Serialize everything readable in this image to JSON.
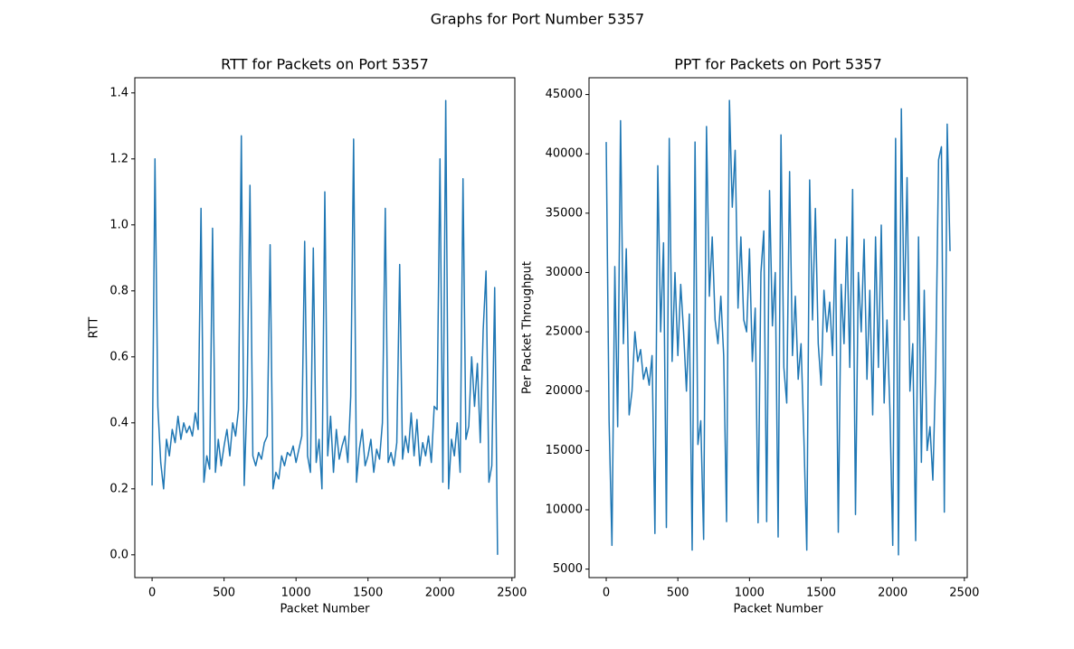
{
  "title": "Graphs for Port Number 5357",
  "chart_data": [
    {
      "type": "line",
      "title": "RTT for Packets on Port 5357",
      "xlabel": "Packet Number",
      "ylabel": "RTT",
      "color": "#1f77b4",
      "x": [
        0,
        20,
        40,
        60,
        80,
        100,
        120,
        140,
        160,
        180,
        200,
        220,
        240,
        260,
        280,
        300,
        320,
        340,
        360,
        380,
        400,
        420,
        440,
        460,
        480,
        500,
        520,
        540,
        560,
        580,
        600,
        620,
        640,
        660,
        680,
        700,
        720,
        740,
        760,
        780,
        800,
        820,
        840,
        860,
        880,
        900,
        920,
        940,
        960,
        980,
        1000,
        1020,
        1040,
        1060,
        1080,
        1100,
        1120,
        1140,
        1160,
        1180,
        1200,
        1220,
        1240,
        1260,
        1280,
        1300,
        1320,
        1340,
        1360,
        1380,
        1400,
        1420,
        1440,
        1460,
        1480,
        1500,
        1520,
        1540,
        1560,
        1580,
        1600,
        1620,
        1640,
        1660,
        1680,
        1700,
        1720,
        1740,
        1760,
        1780,
        1800,
        1820,
        1840,
        1860,
        1880,
        1900,
        1920,
        1940,
        1960,
        1980,
        2000,
        2020,
        2040,
        2060,
        2080,
        2100,
        2120,
        2140,
        2160,
        2180,
        2200,
        2220,
        2240,
        2260,
        2280,
        2300,
        2320,
        2340,
        2360,
        2380,
        2400
      ],
      "values": [
        0.21,
        1.2,
        0.45,
        0.28,
        0.2,
        0.35,
        0.3,
        0.38,
        0.34,
        0.42,
        0.35,
        0.4,
        0.37,
        0.39,
        0.36,
        0.43,
        0.38,
        1.05,
        0.22,
        0.3,
        0.26,
        0.99,
        0.25,
        0.35,
        0.27,
        0.33,
        0.38,
        0.3,
        0.4,
        0.36,
        0.44,
        1.27,
        0.21,
        0.48,
        1.12,
        0.3,
        0.27,
        0.31,
        0.29,
        0.34,
        0.36,
        0.94,
        0.2,
        0.25,
        0.23,
        0.3,
        0.27,
        0.31,
        0.3,
        0.33,
        0.28,
        0.32,
        0.36,
        0.95,
        0.3,
        0.25,
        0.93,
        0.28,
        0.35,
        0.2,
        1.1,
        0.3,
        0.42,
        0.25,
        0.38,
        0.29,
        0.33,
        0.36,
        0.28,
        0.48,
        1.26,
        0.22,
        0.32,
        0.38,
        0.27,
        0.3,
        0.35,
        0.25,
        0.32,
        0.29,
        0.4,
        1.05,
        0.28,
        0.31,
        0.27,
        0.34,
        0.88,
        0.29,
        0.36,
        0.31,
        0.43,
        0.3,
        0.41,
        0.27,
        0.34,
        0.3,
        0.36,
        0.28,
        0.45,
        0.44,
        1.2,
        0.22,
        1.377,
        0.2,
        0.35,
        0.3,
        0.4,
        0.25,
        1.14,
        0.35,
        0.39,
        0.6,
        0.45,
        0.58,
        0.34,
        0.68,
        0.86,
        0.22,
        0.27,
        0.81,
        0.0
      ],
      "xlim": [
        -120,
        2520
      ],
      "xticks": [
        0,
        500,
        1000,
        1500,
        2000,
        2500
      ],
      "ylim": [
        -0.069,
        1.446
      ],
      "yticks": [
        {
          "value": 0,
          "label": "0.0"
        },
        0.2,
        0.4,
        0.6,
        0.8,
        {
          "value": 1,
          "label": "1.0"
        },
        1.2,
        1.4
      ]
    },
    {
      "type": "line",
      "title": "PPT for Packets on Port 5357",
      "xlabel": "Packet Number",
      "ylabel": "Per Packet Throughput",
      "color": "#1f77b4",
      "x": [
        0,
        20,
        40,
        60,
        80,
        100,
        120,
        140,
        160,
        180,
        200,
        220,
        240,
        260,
        280,
        300,
        320,
        340,
        360,
        380,
        400,
        420,
        440,
        460,
        480,
        500,
        520,
        540,
        560,
        580,
        600,
        620,
        640,
        660,
        680,
        700,
        720,
        740,
        760,
        780,
        800,
        820,
        840,
        860,
        880,
        900,
        920,
        940,
        960,
        980,
        1000,
        1020,
        1040,
        1060,
        1080,
        1100,
        1120,
        1140,
        1160,
        1180,
        1200,
        1220,
        1240,
        1260,
        1280,
        1300,
        1320,
        1340,
        1360,
        1380,
        1400,
        1420,
        1440,
        1460,
        1480,
        1500,
        1520,
        1540,
        1560,
        1580,
        1600,
        1620,
        1640,
        1660,
        1680,
        1700,
        1720,
        1740,
        1760,
        1780,
        1800,
        1820,
        1840,
        1860,
        1880,
        1900,
        1920,
        1940,
        1960,
        1980,
        2000,
        2020,
        2040,
        2060,
        2080,
        2100,
        2120,
        2140,
        2160,
        2180,
        2200,
        2220,
        2240,
        2260,
        2280,
        2300,
        2320,
        2340,
        2360,
        2380,
        2400
      ],
      "values": [
        41000,
        17500,
        7000,
        30500,
        17000,
        42800,
        24000,
        32000,
        18000,
        20000,
        25000,
        22500,
        23500,
        21000,
        22000,
        20500,
        23000,
        8000,
        39000,
        25000,
        32500,
        8500,
        41300,
        22500,
        30000,
        23000,
        29000,
        25000,
        20000,
        26500,
        6600,
        41000,
        15500,
        17500,
        7500,
        42300,
        28000,
        33000,
        26000,
        24000,
        28000,
        23000,
        9000,
        44500,
        35500,
        40300,
        27000,
        33000,
        26000,
        25000,
        32000,
        22500,
        27000,
        8900,
        30000,
        33500,
        9000,
        36900,
        25500,
        30000,
        7700,
        41600,
        22000,
        19000,
        38500,
        23000,
        28000,
        21000,
        24000,
        16000,
        6600,
        37800,
        26000,
        35400,
        24000,
        20500,
        28500,
        25000,
        27500,
        23000,
        32800,
        8100,
        29000,
        24000,
        33000,
        22000,
        37000,
        9600,
        30000,
        25000,
        32800,
        21000,
        28500,
        18000,
        33000,
        22000,
        34000,
        19000,
        26000,
        18500,
        7000,
        41300,
        6200,
        43800,
        26000,
        38000,
        20000,
        24000,
        7400,
        33000,
        14000,
        28500,
        15000,
        17000,
        12500,
        22000,
        39500,
        40600,
        9800,
        42500,
        31800
      ],
      "xlim": [
        -120,
        2520
      ],
      "xticks": [
        0,
        500,
        1000,
        1500,
        2000,
        2500
      ],
      "ylim": [
        4285,
        46415
      ],
      "yticks": [
        5000,
        10000,
        15000,
        20000,
        25000,
        30000,
        35000,
        40000,
        45000
      ]
    }
  ]
}
